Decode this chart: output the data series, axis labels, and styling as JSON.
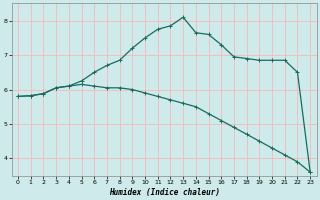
{
  "xlabel": "Humidex (Indice chaleur)",
  "background_color": "#ceeaea",
  "grid_color": "#f5b8b8",
  "line_color": "#1a6b5e",
  "x_values": [
    0,
    1,
    2,
    3,
    4,
    5,
    6,
    7,
    8,
    9,
    10,
    11,
    12,
    13,
    14,
    15,
    16,
    17,
    18,
    19,
    20,
    21,
    22,
    23
  ],
  "curve_low": [
    5.8,
    5.82,
    5.88,
    6.05,
    6.1,
    6.15,
    6.1,
    6.05,
    6.05,
    6.0,
    5.9,
    5.8,
    5.7,
    5.6,
    5.5,
    5.3,
    5.1,
    4.9,
    4.7,
    4.5,
    4.3,
    4.1,
    3.9,
    3.6
  ],
  "curve_high": [
    5.8,
    5.82,
    5.88,
    6.05,
    6.1,
    6.25,
    6.5,
    6.7,
    6.85,
    7.2,
    7.5,
    7.75,
    7.85,
    8.1,
    7.65,
    7.6,
    7.3,
    6.95,
    6.9,
    6.85,
    6.85,
    6.85,
    6.5,
    3.6
  ],
  "ylim": [
    3.5,
    8.5
  ],
  "xlim": [
    -0.5,
    23.5
  ],
  "yticks": [
    4,
    5,
    6,
    7,
    8
  ],
  "xticks": [
    0,
    1,
    2,
    3,
    4,
    5,
    6,
    7,
    8,
    9,
    10,
    11,
    12,
    13,
    14,
    15,
    16,
    17,
    18,
    19,
    20,
    21,
    22,
    23
  ]
}
